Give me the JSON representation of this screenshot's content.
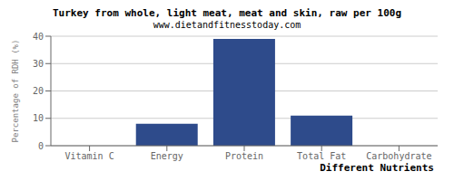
{
  "chart_data": {
    "type": "bar",
    "title": "Turkey from whole, light meat, meat and skin, raw per 100g",
    "subtitle": "www.dietandfitnesstoday.com",
    "xlabel": "Different Nutrients",
    "ylabel": "Percentage of RDH (%)",
    "categories": [
      "Vitamin C",
      "Energy",
      "Protein",
      "Total Fat",
      "Carbohydrate"
    ],
    "values": [
      0,
      8,
      39,
      11,
      0
    ],
    "color": "#2E4B8B",
    "ylim": [
      0,
      40
    ],
    "yticks": [
      0,
      10,
      20,
      30,
      40
    ],
    "grid": true
  }
}
